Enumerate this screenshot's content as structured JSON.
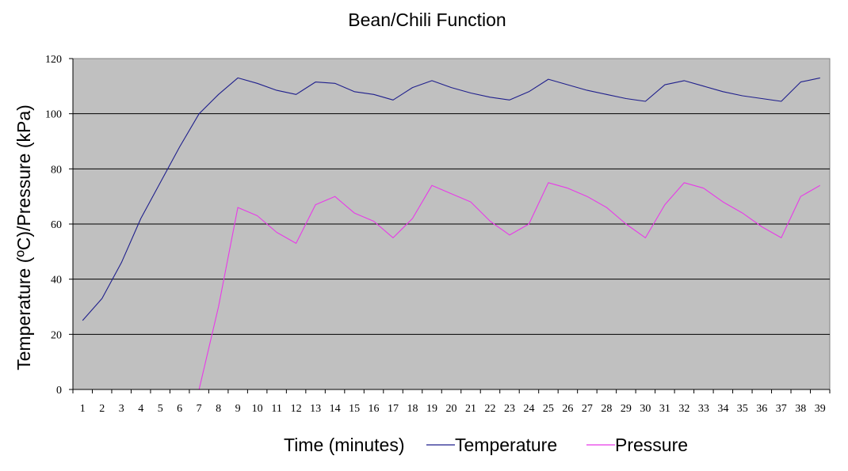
{
  "chart_data": {
    "type": "line",
    "title": "Bean/Chili Function",
    "xlabel": "Time (minutes)",
    "ylabel": "Temperature (ºC)/Pressure (kPa)",
    "ylim": [
      0,
      120
    ],
    "yticks": [
      0,
      20,
      40,
      60,
      80,
      100,
      120
    ],
    "grid": true,
    "legend_position": "bottom",
    "categories": [
      1,
      2,
      3,
      4,
      5,
      6,
      7,
      8,
      9,
      10,
      11,
      12,
      13,
      14,
      15,
      16,
      17,
      18,
      19,
      20,
      21,
      22,
      23,
      24,
      25,
      26,
      27,
      28,
      29,
      30,
      31,
      32,
      33,
      34,
      35,
      36,
      37,
      38,
      39
    ],
    "series": [
      {
        "name": "Temperature",
        "color": "#1F1F8C",
        "values": [
          25,
          33,
          46,
          62,
          75,
          88,
          100,
          107,
          113,
          111,
          108.5,
          107,
          111.5,
          111,
          108,
          107,
          105,
          109.5,
          112,
          109.5,
          107.5,
          106,
          105,
          108,
          112.5,
          110.5,
          108.5,
          107,
          105.5,
          104.5,
          110.5,
          112,
          110,
          108,
          106.5,
          105.5,
          104.5,
          111.5,
          113
        ]
      },
      {
        "name": "Pressure",
        "color": "#E83AE8",
        "values": [
          null,
          null,
          null,
          null,
          null,
          null,
          0,
          30,
          66,
          63,
          57,
          53,
          67,
          70,
          64,
          61,
          55,
          62,
          74,
          71,
          68,
          61,
          56,
          60,
          75,
          73,
          70,
          66,
          60,
          55,
          67,
          75,
          73,
          68,
          64,
          59,
          55,
          70,
          74
        ]
      }
    ]
  }
}
